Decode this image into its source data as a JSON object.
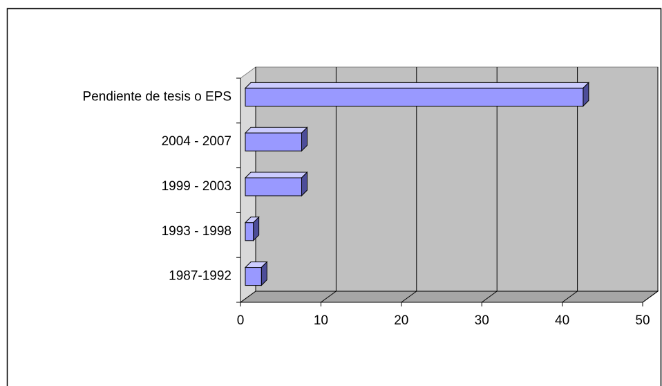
{
  "chart_data": {
    "type": "bar",
    "orientation": "horizontal",
    "categories": [
      "1987-1992",
      "1993 - 1998",
      "1999 - 2003",
      "2004 - 2007",
      "Pendiente de tesis o EPS"
    ],
    "values": [
      2,
      1,
      7,
      7,
      42
    ],
    "color": "#9999ff",
    "xlim": [
      0,
      50
    ],
    "xticks": [
      0,
      10,
      20,
      30,
      40,
      50
    ],
    "grid": true
  }
}
